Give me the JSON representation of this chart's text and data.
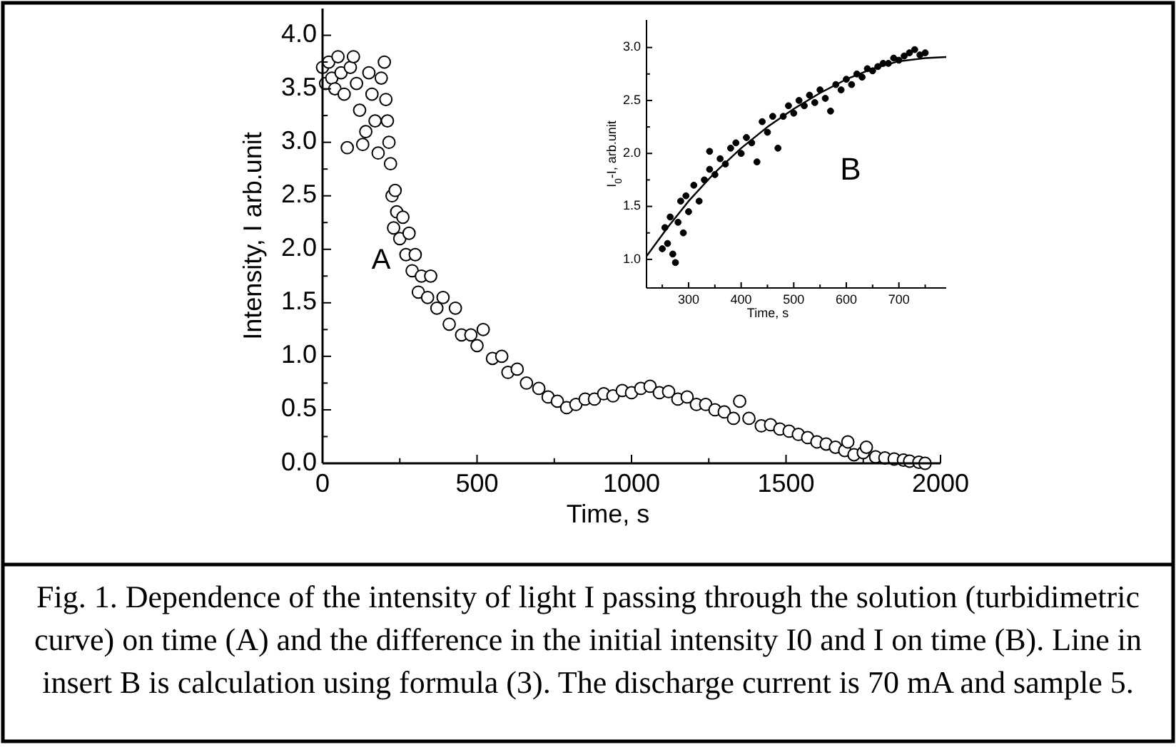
{
  "chart_data": [
    {
      "type": "scatter",
      "xlabel": "Time, s",
      "ylabel": "Intensity, I arb.unit",
      "marker": "circle",
      "xlim": [
        0,
        2000
      ],
      "ylim": [
        0,
        4.25
      ],
      "xticks": [
        0,
        {
          "value": 250,
          "label": null
        },
        500,
        {
          "value": 750,
          "label": null
        },
        1000,
        {
          "value": 1250,
          "label": null
        },
        1500,
        {
          "value": 1750,
          "label": null
        },
        2000
      ],
      "yticks": [
        {
          "value": 0,
          "label": "0.0"
        },
        {
          "value": 0.25,
          "label": null
        },
        {
          "value": 0.5,
          "label": "0.5"
        },
        {
          "value": 0.75,
          "label": null
        },
        {
          "value": 1,
          "label": "1.0"
        },
        {
          "value": 1.25,
          "label": null
        },
        {
          "value": 1.5,
          "label": "1.5"
        },
        {
          "value": 1.75,
          "label": null
        },
        {
          "value": 2,
          "label": "2.0"
        },
        {
          "value": 2.25,
          "label": null
        },
        {
          "value": 2.5,
          "label": "2.5"
        },
        {
          "value": 2.75,
          "label": null
        },
        {
          "value": 3,
          "label": "3.0"
        },
        {
          "value": 3.25,
          "label": null
        },
        {
          "value": 3.5,
          "label": "3.5"
        },
        {
          "value": 3.75,
          "label": null
        },
        {
          "value": 4,
          "label": "4.0"
        }
      ],
      "series": [
        {
          "color": "#000000",
          "x": [
            0,
            10,
            20,
            30,
            40,
            50,
            60,
            70,
            80,
            90,
            100,
            110,
            120,
            130,
            140,
            150,
            160,
            170,
            180,
            190,
            200,
            205,
            210,
            215,
            220,
            225,
            230,
            235,
            240,
            250,
            260,
            270,
            280,
            290,
            300,
            310,
            320,
            340,
            350,
            370,
            390,
            410,
            430,
            450,
            480,
            500,
            520,
            550,
            580,
            600,
            630,
            660,
            700,
            730,
            760,
            790,
            820,
            850,
            880,
            910,
            940,
            970,
            1000,
            1030,
            1060,
            1090,
            1120,
            1150,
            1180,
            1210,
            1240,
            1270,
            1300,
            1330,
            1350,
            1380,
            1420,
            1450,
            1480,
            1510,
            1540,
            1570,
            1600,
            1630,
            1660,
            1690,
            1700,
            1720,
            1750,
            1760,
            1790,
            1820,
            1850,
            1880,
            1900,
            1930,
            1950
          ],
          "values": [
            3.7,
            3.55,
            3.75,
            3.6,
            3.5,
            3.8,
            3.65,
            3.45,
            2.95,
            3.7,
            3.8,
            3.55,
            3.3,
            2.98,
            3.1,
            3.65,
            3.45,
            3.2,
            2.9,
            3.6,
            3.75,
            3.4,
            3.2,
            3.0,
            2.8,
            2.5,
            2.2,
            2.55,
            2.35,
            2.1,
            2.3,
            1.95,
            2.15,
            1.8,
            1.95,
            1.6,
            1.75,
            1.55,
            1.75,
            1.45,
            1.55,
            1.3,
            1.45,
            1.2,
            1.2,
            1.1,
            1.25,
            0.98,
            1.0,
            0.85,
            0.88,
            0.75,
            0.7,
            0.62,
            0.58,
            0.52,
            0.55,
            0.6,
            0.6,
            0.65,
            0.63,
            0.68,
            0.66,
            0.7,
            0.72,
            0.66,
            0.67,
            0.6,
            0.62,
            0.55,
            0.55,
            0.5,
            0.48,
            0.42,
            0.58,
            0.42,
            0.35,
            0.36,
            0.32,
            0.3,
            0.27,
            0.24,
            0.2,
            0.18,
            0.15,
            0.12,
            0.2,
            0.08,
            0.1,
            0.15,
            0.06,
            0.05,
            0.04,
            0.03,
            0.02,
            0.01,
            0.0
          ]
        }
      ],
      "annotations": [
        "A",
        "Fig. 1. Dependence of the intensity of light I passing through the solution (turbidimetric curve) on time (A) and the difference in the initial intensity I0 and I on time (B). Line in insert B is calculation using formula (3). The discharge current is 70 mA and sample 5."
      ]
    },
    {
      "type": "scatter",
      "xlabel": "Time, s",
      "ylabel": "I$_{0}$-I, arb.unit",
      "marker": "circle",
      "xlim": [
        220,
        790
      ],
      "ylim": [
        0.73,
        3.26
      ],
      "xticks": [
        {
          "value": 250,
          "label": null
        },
        300,
        {
          "value": 350,
          "label": null
        },
        400,
        {
          "value": 450,
          "label": null
        },
        500,
        {
          "value": 550,
          "label": null
        },
        600,
        {
          "value": 650,
          "label": null
        },
        700,
        {
          "value": 750,
          "label": null
        }
      ],
      "yticks": [
        {
          "value": 1,
          "label": "1.0"
        },
        {
          "value": 1.25,
          "label": null
        },
        {
          "value": 1.5,
          "label": "1.5"
        },
        {
          "value": 1.75,
          "label": null
        },
        {
          "value": 2,
          "label": "2.0"
        },
        {
          "value": 2.25,
          "label": null
        },
        {
          "value": 2.5,
          "label": "2.5"
        },
        {
          "value": 2.75,
          "label": null
        },
        {
          "value": 3,
          "label": "3.0"
        }
      ],
      "series": [
        {
          "color": "#000000",
          "x": [
            250,
            255,
            260,
            265,
            270,
            275,
            280,
            285,
            290,
            295,
            300,
            310,
            320,
            330,
            340,
            340,
            350,
            360,
            370,
            380,
            390,
            400,
            410,
            420,
            430,
            440,
            450,
            460,
            470,
            480,
            490,
            500,
            510,
            520,
            530,
            540,
            550,
            560,
            570,
            580,
            590,
            600,
            610,
            620,
            630,
            640,
            650,
            660,
            670,
            680,
            690,
            700,
            710,
            720,
            730,
            740,
            750
          ],
          "values": [
            1.1,
            1.3,
            1.15,
            1.4,
            1.05,
            0.97,
            1.35,
            1.55,
            1.25,
            1.6,
            1.45,
            1.7,
            1.55,
            1.75,
            1.85,
            2.02,
            1.8,
            1.95,
            1.9,
            2.05,
            2.1,
            2.0,
            2.15,
            2.1,
            1.92,
            2.3,
            2.2,
            2.35,
            2.05,
            2.35,
            2.45,
            2.38,
            2.5,
            2.45,
            2.55,
            2.48,
            2.6,
            2.52,
            2.4,
            2.65,
            2.6,
            2.7,
            2.65,
            2.75,
            2.72,
            2.8,
            2.78,
            2.82,
            2.85,
            2.85,
            2.9,
            2.88,
            2.92,
            2.95,
            2.98,
            2.93,
            2.95
          ]
        },
        {
          "type": "line",
          "color": "#000000",
          "marker": "none",
          "x": [
            220,
            260,
            300,
            350,
            400,
            450,
            500,
            550,
            600,
            650,
            700,
            750,
            790
          ],
          "values": [
            1.03,
            1.3,
            1.55,
            1.82,
            2.05,
            2.25,
            2.42,
            2.57,
            2.7,
            2.8,
            2.87,
            2.9,
            2.91
          ]
        }
      ],
      "annotations": [
        "B"
      ]
    }
  ]
}
